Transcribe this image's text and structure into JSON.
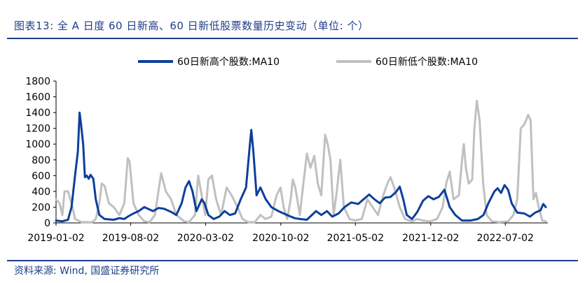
{
  "header": {
    "title": "图表13:  全 A 日度 60 日新高、60 日新低股票数量历史变动（单位: 个）"
  },
  "footer": {
    "source": "资料来源: Wind, 国盛证券研究所"
  },
  "colors": {
    "series_high": "#0d3f9c",
    "series_low": "#c0c0c0",
    "rule": "#1f3f8a",
    "axis_text": "#000000"
  },
  "chart_data": {
    "type": "line",
    "title": "",
    "xlabel": "",
    "ylabel": "",
    "ylim": [
      0,
      1800
    ],
    "yticks": [
      0,
      200,
      400,
      600,
      800,
      1000,
      1200,
      1400,
      1600,
      1800
    ],
    "xlim": [
      "2019-01-02",
      "2022-10-31"
    ],
    "xticks": [
      "2019-01-02",
      "2019-08-02",
      "2020-03-02",
      "2020-10-02",
      "2021-05-02",
      "2021-12-02",
      "2022-07-02"
    ],
    "grid": false,
    "legend_position": "top-center",
    "series": [
      {
        "name": "60日新高个股数:MA10",
        "color": "#0d3f9c",
        "points": [
          [
            "2019-01-02",
            30
          ],
          [
            "2019-01-20",
            20
          ],
          [
            "2019-02-05",
            40
          ],
          [
            "2019-02-15",
            200
          ],
          [
            "2019-02-25",
            600
          ],
          [
            "2019-03-05",
            900
          ],
          [
            "2019-03-10",
            1400
          ],
          [
            "2019-03-14",
            1250
          ],
          [
            "2019-03-20",
            1000
          ],
          [
            "2019-03-25",
            580
          ],
          [
            "2019-03-30",
            600
          ],
          [
            "2019-04-05",
            560
          ],
          [
            "2019-04-10",
            610
          ],
          [
            "2019-04-18",
            560
          ],
          [
            "2019-04-25",
            300
          ],
          [
            "2019-05-05",
            100
          ],
          [
            "2019-05-20",
            50
          ],
          [
            "2019-06-15",
            40
          ],
          [
            "2019-07-01",
            60
          ],
          [
            "2019-07-15",
            50
          ],
          [
            "2019-07-25",
            80
          ],
          [
            "2019-08-10",
            120
          ],
          [
            "2019-08-25",
            150
          ],
          [
            "2019-09-10",
            200
          ],
          [
            "2019-09-20",
            180
          ],
          [
            "2019-10-05",
            150
          ],
          [
            "2019-10-20",
            190
          ],
          [
            "2019-11-05",
            180
          ],
          [
            "2019-11-25",
            140
          ],
          [
            "2019-12-10",
            100
          ],
          [
            "2019-12-25",
            250
          ],
          [
            "2020-01-05",
            450
          ],
          [
            "2020-01-15",
            530
          ],
          [
            "2020-01-25",
            400
          ],
          [
            "2020-02-05",
            150
          ],
          [
            "2020-02-20",
            300
          ],
          [
            "2020-02-28",
            250
          ],
          [
            "2020-03-10",
            100
          ],
          [
            "2020-03-25",
            50
          ],
          [
            "2020-04-10",
            80
          ],
          [
            "2020-04-25",
            150
          ],
          [
            "2020-05-10",
            100
          ],
          [
            "2020-05-25",
            120
          ],
          [
            "2020-06-10",
            300
          ],
          [
            "2020-06-25",
            450
          ],
          [
            "2020-07-05",
            950
          ],
          [
            "2020-07-10",
            1180
          ],
          [
            "2020-07-16",
            900
          ],
          [
            "2020-07-25",
            350
          ],
          [
            "2020-08-05",
            450
          ],
          [
            "2020-08-20",
            300
          ],
          [
            "2020-09-05",
            200
          ],
          [
            "2020-09-25",
            150
          ],
          [
            "2020-10-10",
            120
          ],
          [
            "2020-10-25",
            90
          ],
          [
            "2020-11-10",
            60
          ],
          [
            "2020-11-25",
            50
          ],
          [
            "2020-12-15",
            40
          ],
          [
            "2021-01-10",
            150
          ],
          [
            "2021-01-25",
            100
          ],
          [
            "2021-02-10",
            150
          ],
          [
            "2021-02-25",
            80
          ],
          [
            "2021-03-15",
            120
          ],
          [
            "2021-04-01",
            200
          ],
          [
            "2021-04-20",
            260
          ],
          [
            "2021-05-10",
            240
          ],
          [
            "2021-05-25",
            300
          ],
          [
            "2021-06-10",
            360
          ],
          [
            "2021-06-25",
            300
          ],
          [
            "2021-07-10",
            250
          ],
          [
            "2021-07-25",
            320
          ],
          [
            "2021-08-10",
            330
          ],
          [
            "2021-08-25",
            390
          ],
          [
            "2021-09-05",
            460
          ],
          [
            "2021-09-15",
            300
          ],
          [
            "2021-09-25",
            100
          ],
          [
            "2021-10-10",
            50
          ],
          [
            "2021-10-25",
            140
          ],
          [
            "2021-11-10",
            280
          ],
          [
            "2021-11-25",
            340
          ],
          [
            "2021-12-10",
            300
          ],
          [
            "2021-12-25",
            330
          ],
          [
            "2022-01-10",
            420
          ],
          [
            "2022-01-25",
            200
          ],
          [
            "2022-02-10",
            100
          ],
          [
            "2022-03-01",
            30
          ],
          [
            "2022-03-25",
            30
          ],
          [
            "2022-04-15",
            50
          ],
          [
            "2022-05-01",
            100
          ],
          [
            "2022-05-15",
            250
          ],
          [
            "2022-06-01",
            400
          ],
          [
            "2022-06-10",
            440
          ],
          [
            "2022-06-20",
            380
          ],
          [
            "2022-06-30",
            480
          ],
          [
            "2022-07-10",
            420
          ],
          [
            "2022-07-20",
            250
          ],
          [
            "2022-08-05",
            130
          ],
          [
            "2022-08-25",
            120
          ],
          [
            "2022-09-10",
            80
          ],
          [
            "2022-09-25",
            130
          ],
          [
            "2022-10-10",
            160
          ],
          [
            "2022-10-18",
            240
          ],
          [
            "2022-10-25",
            200
          ]
        ]
      },
      {
        "name": "60日新低个股数:MA10",
        "color": "#c0c0c0",
        "points": [
          [
            "2019-01-02",
            300
          ],
          [
            "2019-01-12",
            250
          ],
          [
            "2019-01-20",
            100
          ],
          [
            "2019-01-26",
            400
          ],
          [
            "2019-02-05",
            400
          ],
          [
            "2019-02-15",
            250
          ],
          [
            "2019-02-25",
            50
          ],
          [
            "2019-03-15",
            10
          ],
          [
            "2019-04-15",
            10
          ],
          [
            "2019-04-25",
            50
          ],
          [
            "2019-05-05",
            250
          ],
          [
            "2019-05-12",
            500
          ],
          [
            "2019-05-20",
            470
          ],
          [
            "2019-06-01",
            250
          ],
          [
            "2019-06-15",
            200
          ],
          [
            "2019-07-01",
            100
          ],
          [
            "2019-07-15",
            250
          ],
          [
            "2019-07-25",
            820
          ],
          [
            "2019-07-30",
            780
          ],
          [
            "2019-08-10",
            250
          ],
          [
            "2019-08-25",
            100
          ],
          [
            "2019-09-10",
            20
          ],
          [
            "2019-09-25",
            10
          ],
          [
            "2019-10-10",
            100
          ],
          [
            "2019-10-20",
            400
          ],
          [
            "2019-10-28",
            630
          ],
          [
            "2019-11-10",
            400
          ],
          [
            "2019-11-25",
            300
          ],
          [
            "2019-12-10",
            100
          ],
          [
            "2020-01-01",
            20
          ],
          [
            "2020-01-15",
            10
          ],
          [
            "2020-02-01",
            100
          ],
          [
            "2020-02-10",
            600
          ],
          [
            "2020-02-20",
            350
          ],
          [
            "2020-03-01",
            100
          ],
          [
            "2020-03-10",
            550
          ],
          [
            "2020-03-20",
            600
          ],
          [
            "2020-04-01",
            300
          ],
          [
            "2020-04-15",
            100
          ],
          [
            "2020-05-01",
            450
          ],
          [
            "2020-05-15",
            350
          ],
          [
            "2020-06-01",
            200
          ],
          [
            "2020-06-15",
            50
          ],
          [
            "2020-07-01",
            10
          ],
          [
            "2020-07-20",
            10
          ],
          [
            "2020-08-05",
            100
          ],
          [
            "2020-08-20",
            50
          ],
          [
            "2020-09-05",
            80
          ],
          [
            "2020-09-20",
            350
          ],
          [
            "2020-10-01",
            450
          ],
          [
            "2020-10-10",
            200
          ],
          [
            "2020-10-20",
            50
          ],
          [
            "2020-10-30",
            300
          ],
          [
            "2020-11-05",
            550
          ],
          [
            "2020-11-12",
            450
          ],
          [
            "2020-11-25",
            100
          ],
          [
            "2020-12-05",
            500
          ],
          [
            "2020-12-15",
            880
          ],
          [
            "2020-12-25",
            700
          ],
          [
            "2021-01-05",
            850
          ],
          [
            "2021-01-15",
            500
          ],
          [
            "2021-01-25",
            350
          ],
          [
            "2021-02-05",
            1120
          ],
          [
            "2021-02-12",
            1000
          ],
          [
            "2021-02-20",
            800
          ],
          [
            "2021-03-01",
            100
          ],
          [
            "2021-03-10",
            400
          ],
          [
            "2021-03-20",
            800
          ],
          [
            "2021-03-30",
            200
          ],
          [
            "2021-04-15",
            50
          ],
          [
            "2021-05-01",
            30
          ],
          [
            "2021-05-20",
            50
          ],
          [
            "2021-06-05",
            300
          ],
          [
            "2021-06-20",
            200
          ],
          [
            "2021-07-05",
            100
          ],
          [
            "2021-07-20",
            350
          ],
          [
            "2021-08-01",
            500
          ],
          [
            "2021-08-10",
            580
          ],
          [
            "2021-08-20",
            450
          ],
          [
            "2021-09-05",
            200
          ],
          [
            "2021-09-20",
            50
          ],
          [
            "2021-10-10",
            20
          ],
          [
            "2021-10-25",
            50
          ],
          [
            "2021-11-10",
            30
          ],
          [
            "2021-11-30",
            20
          ],
          [
            "2021-12-20",
            50
          ],
          [
            "2022-01-05",
            200
          ],
          [
            "2022-01-15",
            500
          ],
          [
            "2022-01-25",
            650
          ],
          [
            "2022-02-05",
            300
          ],
          [
            "2022-02-20",
            350
          ],
          [
            "2022-03-01",
            800
          ],
          [
            "2022-03-06",
            1000
          ],
          [
            "2022-03-12",
            700
          ],
          [
            "2022-03-20",
            500
          ],
          [
            "2022-03-30",
            550
          ],
          [
            "2022-04-05",
            1200
          ],
          [
            "2022-04-12",
            1550
          ],
          [
            "2022-04-20",
            1300
          ],
          [
            "2022-04-30",
            500
          ],
          [
            "2022-05-10",
            100
          ],
          [
            "2022-05-25",
            20
          ],
          [
            "2022-06-15",
            10
          ],
          [
            "2022-07-10",
            20
          ],
          [
            "2022-07-25",
            100
          ],
          [
            "2022-08-05",
            300
          ],
          [
            "2022-08-15",
            1200
          ],
          [
            "2022-08-25",
            1250
          ],
          [
            "2022-09-05",
            1370
          ],
          [
            "2022-09-12",
            1300
          ],
          [
            "2022-09-20",
            300
          ],
          [
            "2022-09-27",
            380
          ],
          [
            "2022-10-05",
            200
          ],
          [
            "2022-10-15",
            30
          ],
          [
            "2022-10-25",
            20
          ]
        ]
      }
    ]
  }
}
